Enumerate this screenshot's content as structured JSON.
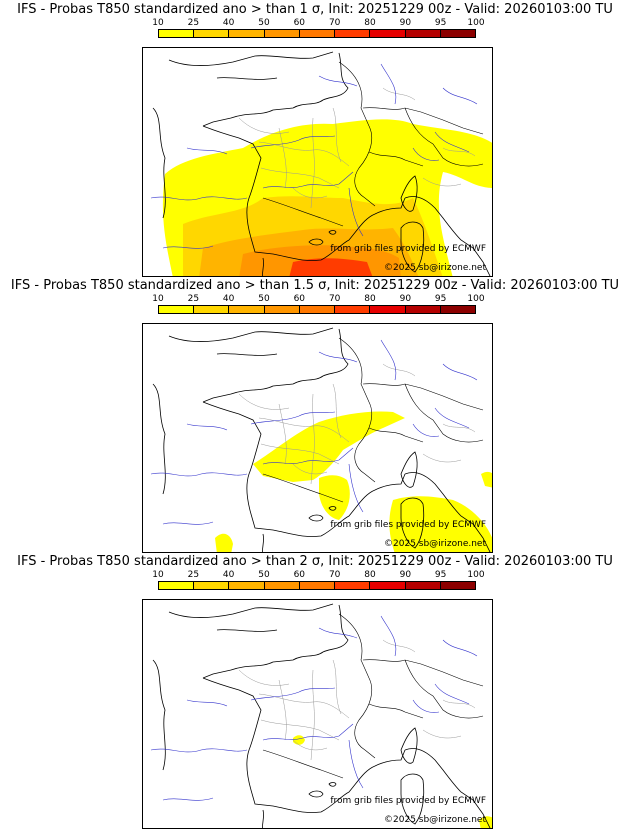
{
  "legend": {
    "ticks": [
      "10",
      "25",
      "40",
      "50",
      "60",
      "70",
      "80",
      "90",
      "95",
      "100"
    ],
    "colors": [
      "#ffff00",
      "#ffd700",
      "#ffb400",
      "#ff9600",
      "#ff7800",
      "#ff3c00",
      "#e60000",
      "#b40000",
      "#8c0000"
    ]
  },
  "credits": {
    "source": "from grib files provided by ECMWF",
    "copyright": "©2025 sb@irizone.net"
  },
  "panels": [
    {
      "title": "IFS - Probas T850  standardized ano > than 1 σ, Init: 20251229 00z - Valid: 20260103:00 TU"
    },
    {
      "title": "IFS - Probas T850  standardized ano > than 1.5 σ, Init: 20251229 00z - Valid: 20260103:00 TU"
    },
    {
      "title": "IFS - Probas T850  standardized ano > than 2 σ, Init: 20251229 00z - Valid: 20260103:00 TU"
    }
  ]
}
